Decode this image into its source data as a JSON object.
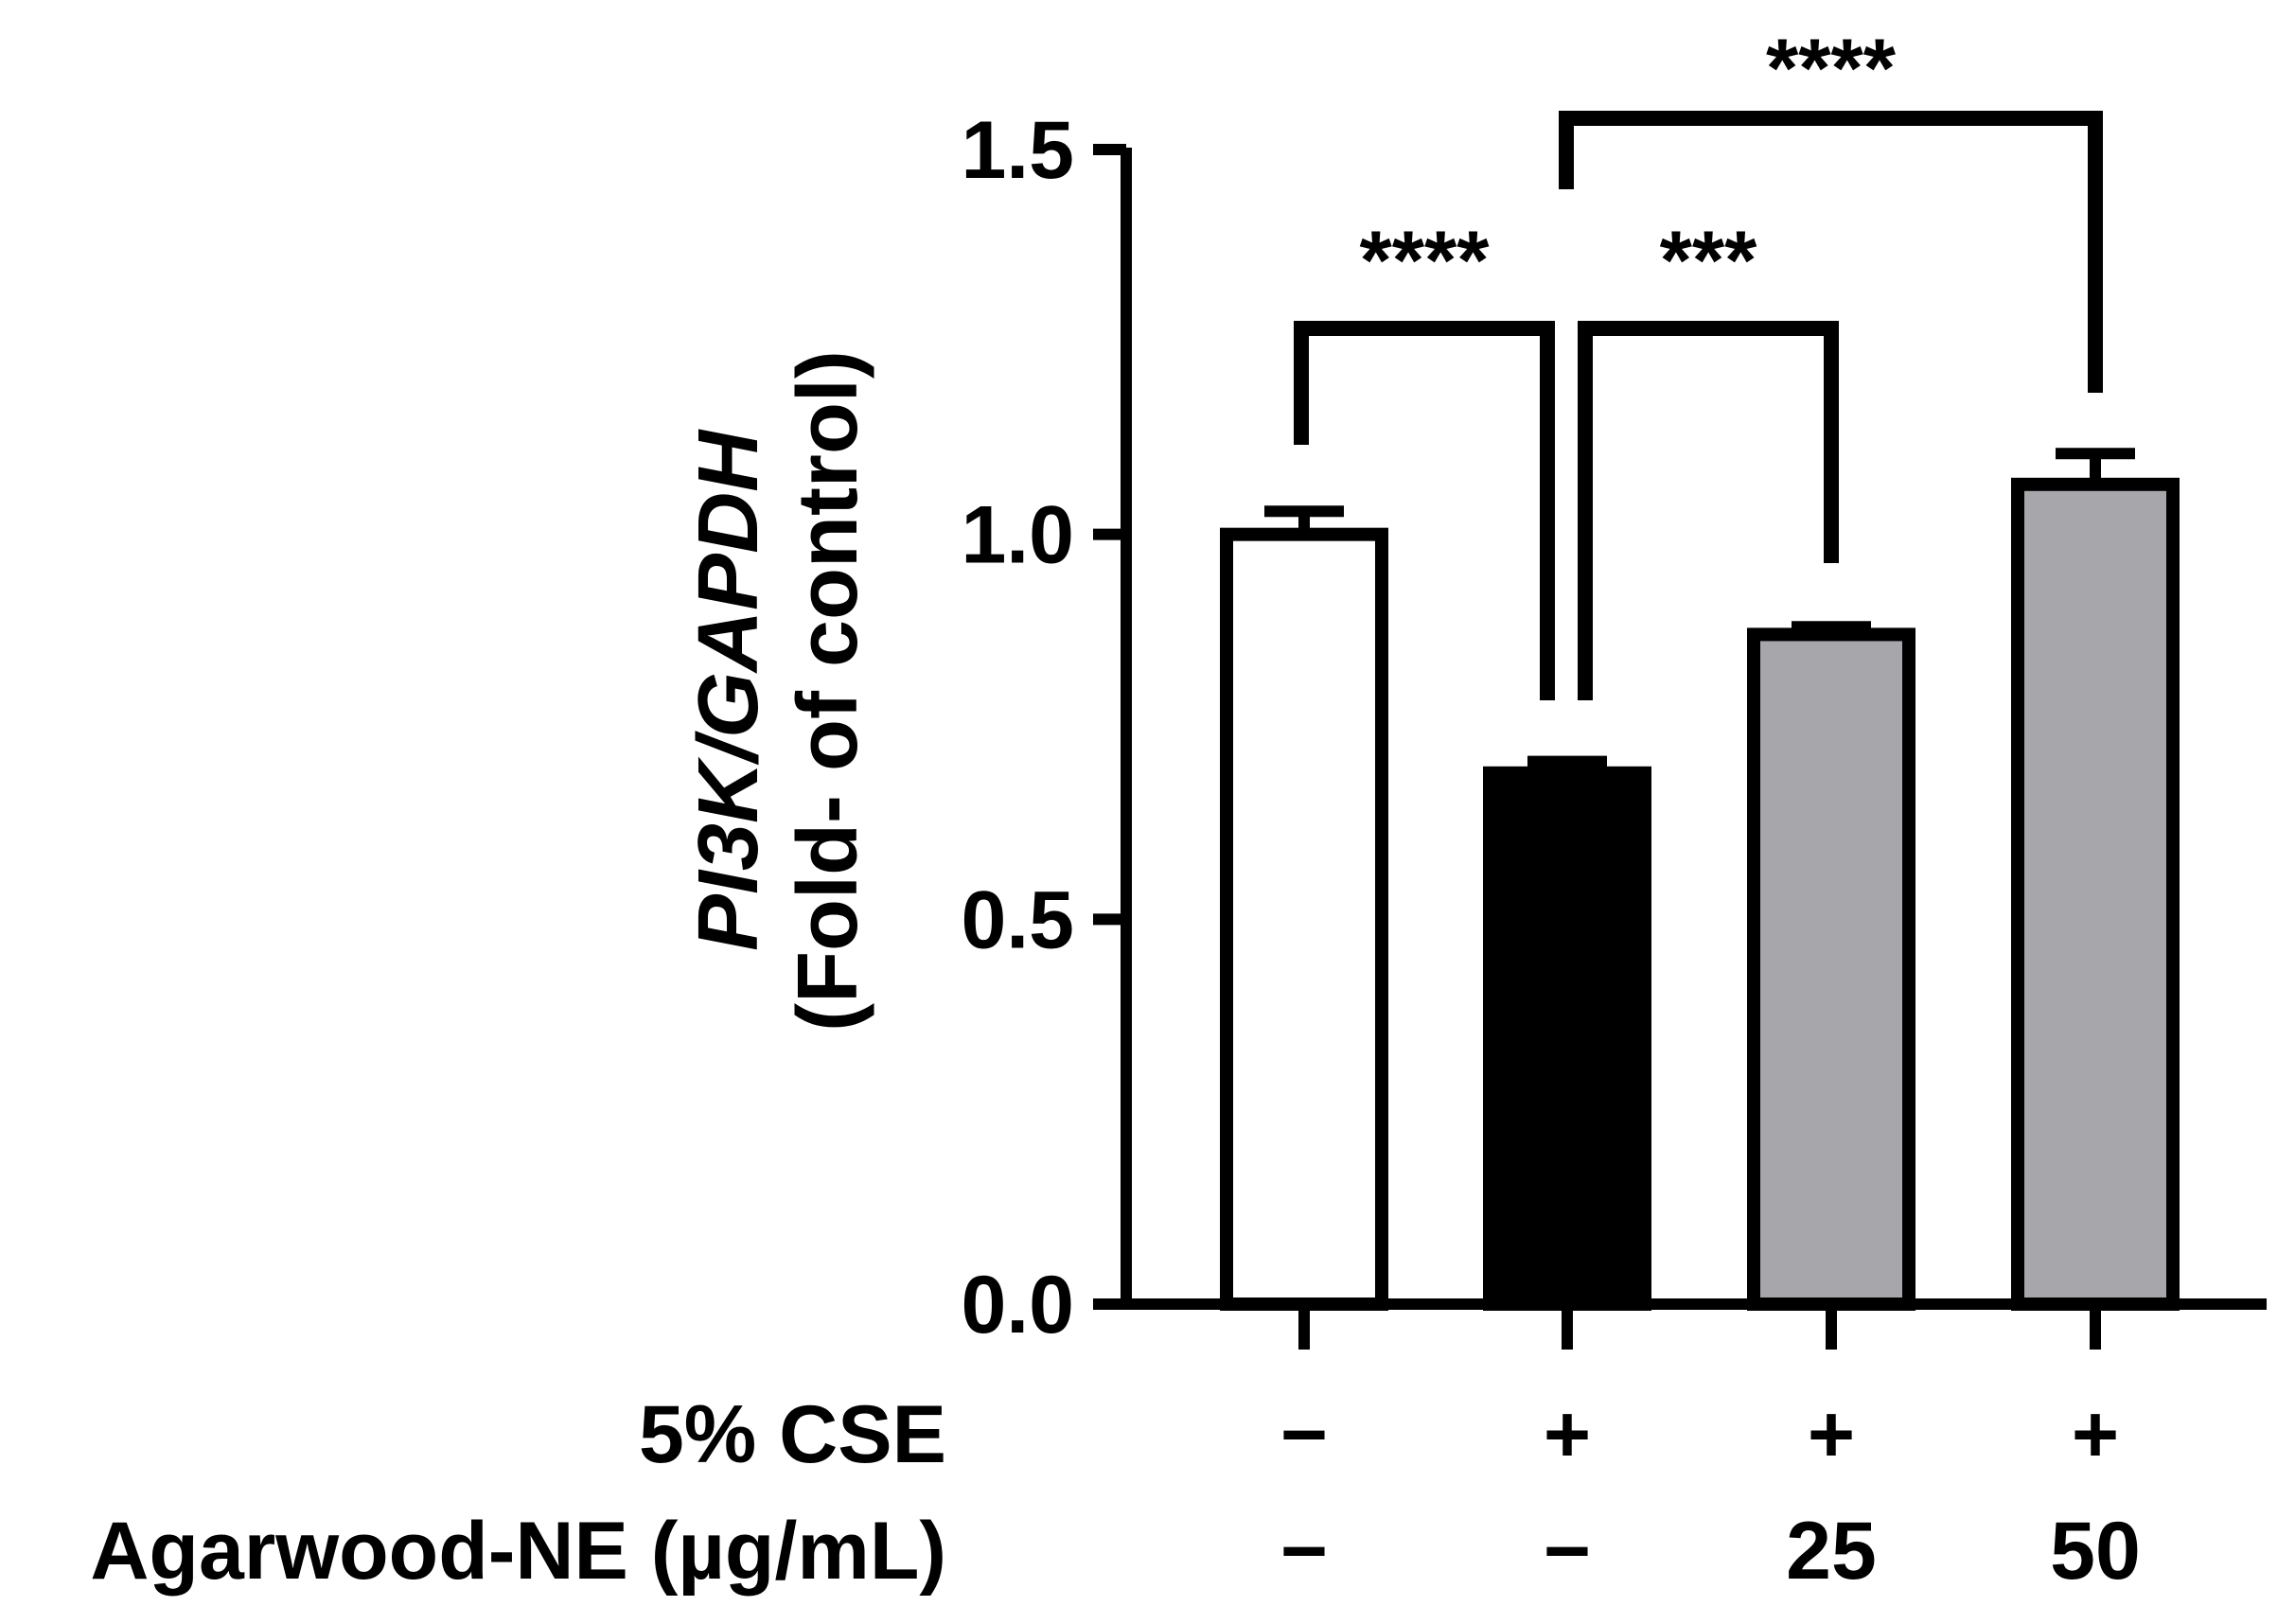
{
  "chart_data": {
    "type": "bar",
    "ylabel_italic": "PI3K/GAPDH",
    "ylabel_sub": "(Fold- of control)",
    "ylim": [
      0,
      1.5
    ],
    "yticks": [
      0.0,
      0.5,
      1.0,
      1.5
    ],
    "ytick_labels": [
      "0.0",
      "0.5",
      "1.0",
      "1.5"
    ],
    "bars": [
      {
        "value": 1.0,
        "error": 0.03,
        "fill": "#ffffff"
      },
      {
        "value": 0.69,
        "error": 0.015,
        "fill": "#000000"
      },
      {
        "value": 0.87,
        "error": 0.01,
        "fill": "#a7a6ab"
      },
      {
        "value": 1.065,
        "error": 0.04,
        "fill": "#a7a6ab"
      }
    ],
    "condition_rows": [
      {
        "label": "5% CSE",
        "values": [
          "−",
          "+",
          "+",
          "+"
        ]
      },
      {
        "label": "Agarwood-NE (µg/mL)",
        "values": [
          "−",
          "−",
          "25",
          "50"
        ]
      }
    ],
    "significance": [
      {
        "from": 0,
        "to": 1,
        "label": "****"
      },
      {
        "from": 1,
        "to": 2,
        "label": "***"
      },
      {
        "from": 1,
        "to": 3,
        "label": "****"
      }
    ]
  }
}
